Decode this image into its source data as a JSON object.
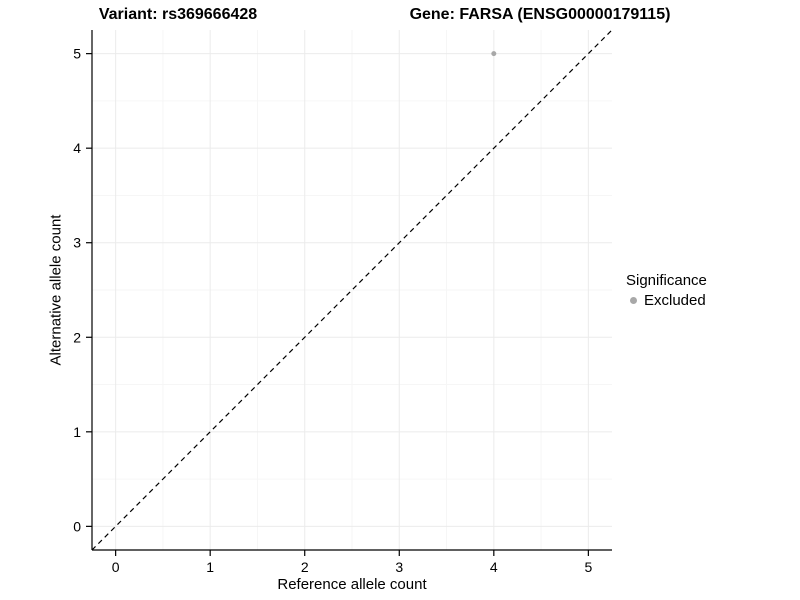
{
  "chart_data": {
    "type": "scatter",
    "title_left": "Variant: rs369666428",
    "title_right": "Gene: FARSA (ENSG00000179115)",
    "xlabel": "Reference allele count",
    "ylabel": "Alternative allele count",
    "xlim": [
      -0.25,
      5.25
    ],
    "ylim": [
      -0.25,
      5.25
    ],
    "xticks": [
      0,
      1,
      2,
      3,
      4,
      5
    ],
    "yticks": [
      0,
      1,
      2,
      3,
      4,
      5
    ],
    "grid": true,
    "points": [
      {
        "x": 4,
        "y": 5,
        "significance": "Excluded"
      }
    ],
    "identity_line": {
      "style": "dashed",
      "from": [
        -0.25,
        -0.25
      ],
      "to": [
        5.25,
        5.25
      ],
      "color": "#000000"
    },
    "legend": {
      "title": "Significance",
      "position": "right",
      "items": [
        {
          "label": "Excluded",
          "color": "#a8a8a8"
        }
      ]
    },
    "colors": {
      "point": "#a8a8a8",
      "grid_major": "#ebebeb",
      "grid_minor": "#f6f6f6",
      "axis": "#000000",
      "background": "#ffffff"
    }
  }
}
